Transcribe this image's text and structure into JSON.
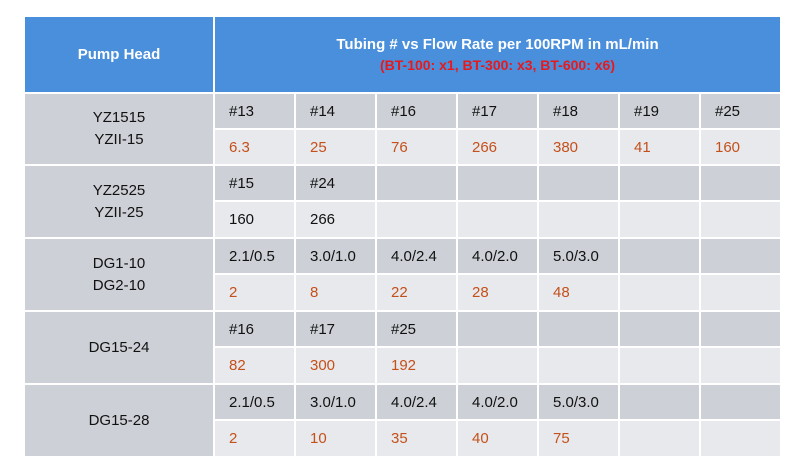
{
  "header": {
    "pump_head": "Pump Head",
    "title": "Tubing # vs Flow Rate per 100RPM in mL/min",
    "note": "(BT-100: x1, BT-300: x3, BT-600: x6)"
  },
  "colors": {
    "header_bg": "#4a8fdb",
    "header_text": "#ffffff",
    "note_text": "#e8191c",
    "row_dark": "#cdd0d6",
    "row_light": "#e8e9ed",
    "flow_red": "#c4501a",
    "flow_black": "#111111"
  },
  "groups": [
    {
      "pump": [
        "YZ1515",
        "YZII-15"
      ],
      "tubing": [
        "#13",
        "#14",
        "#16",
        "#17",
        "#18",
        "#19",
        "#25"
      ],
      "flow": [
        "6.3",
        "25",
        "76",
        "266",
        "380",
        "41",
        "160"
      ],
      "flow_color": "red"
    },
    {
      "pump": [
        "YZ2525",
        "YZII-25"
      ],
      "tubing": [
        "#15",
        "#24"
      ],
      "flow": [
        "160",
        "266"
      ],
      "flow_color": "black"
    },
    {
      "pump": [
        "DG1-10",
        "DG2-10"
      ],
      "tubing": [
        "2.1/0.5",
        "3.0/1.0",
        "4.0/2.4",
        "4.0/2.0",
        "5.0/3.0"
      ],
      "flow": [
        "2",
        "8",
        "22",
        "28",
        "48"
      ],
      "flow_color": "red"
    },
    {
      "pump": [
        "DG15-24"
      ],
      "tubing": [
        "#16",
        "#17",
        "#25"
      ],
      "flow": [
        "82",
        "300",
        "192"
      ],
      "flow_color": "red"
    },
    {
      "pump": [
        "DG15-28"
      ],
      "tubing": [
        "2.1/0.5",
        "3.0/1.0",
        "4.0/2.4",
        "4.0/2.0",
        "5.0/3.0"
      ],
      "flow": [
        "2",
        "10",
        "35",
        "40",
        "75"
      ],
      "flow_color": "red"
    }
  ]
}
